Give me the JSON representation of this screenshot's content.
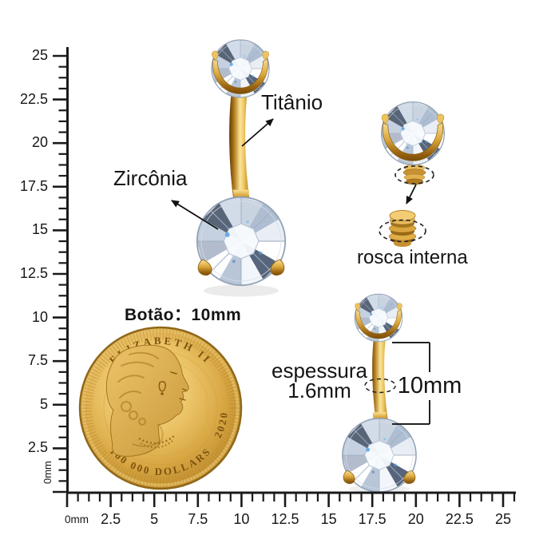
{
  "annotations": {
    "titanium_label": "Titânio",
    "zirconia_label": "Zircônia",
    "internal_thread_label": "rosca interna",
    "button_size_label": "Botão：10mm",
    "thickness_label_line1": "espessura",
    "thickness_label_line2": "1.6mm",
    "bar_length_label": "10mm"
  },
  "coin": {
    "legend_top": "ELIZABETH II",
    "legend_bottom": "100 000 DOLLARS",
    "year": "2020"
  },
  "rulers": {
    "vertical_labels": [
      "25",
      "22.5",
      "20",
      "17.5",
      "15",
      "12.5",
      "10",
      "7.5",
      "5",
      "2.5"
    ],
    "vertical_zero_label": "0mm",
    "horizontal_labels": [
      "0mm",
      "2.5",
      "5",
      "7.5",
      "10",
      "12.5",
      "15",
      "17.5",
      "20",
      "22.5",
      "25"
    ]
  },
  "colors": {
    "gold_light": "#f9e49b",
    "gold_mid": "#d9a43c",
    "gold_dark": "#6f4406",
    "gem_light": "#f4f7fb",
    "gem_mid": "#c5d1e0",
    "gem_dark": "#22304a",
    "sparkle_blue": "#55a3e6",
    "ink": "#141414"
  }
}
